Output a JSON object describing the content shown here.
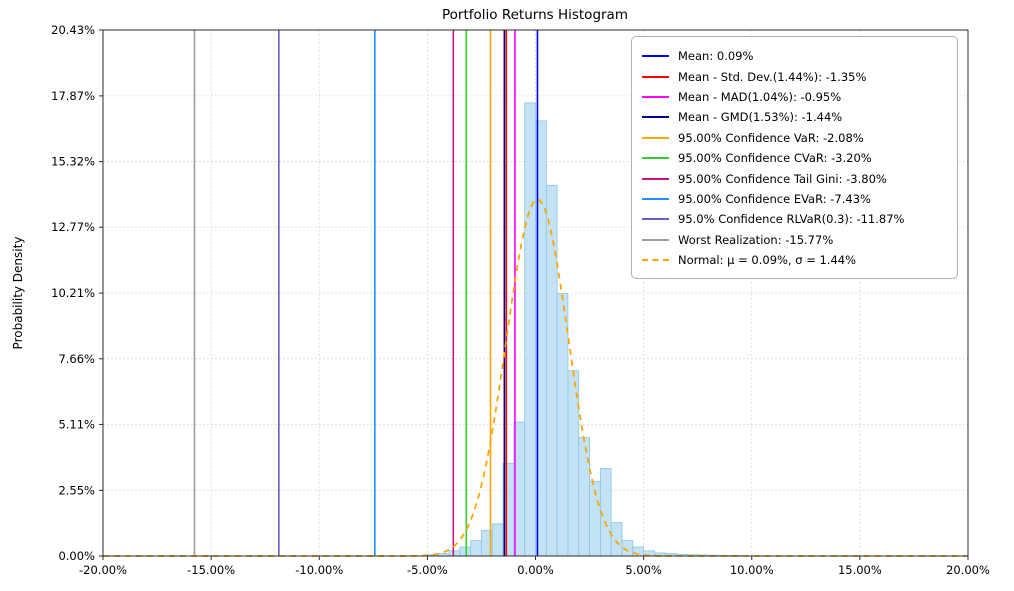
{
  "chart_data": {
    "type": "bar",
    "subtype": "histogram-with-risk-measures",
    "title": "Portfolio Returns Histogram",
    "xlabel": "",
    "ylabel": "Probability Density",
    "xlim": [
      -20,
      20
    ],
    "ylim": [
      0,
      20.43
    ],
    "grid": "dotted",
    "legend_position": "upper right",
    "x_ticks": [
      {
        "value": -20,
        "label": "-20.00%"
      },
      {
        "value": -15,
        "label": "-15.00%"
      },
      {
        "value": -10,
        "label": "-10.00%"
      },
      {
        "value": -5,
        "label": "-5.00%"
      },
      {
        "value": 0,
        "label": "0.00%"
      },
      {
        "value": 5,
        "label": "5.00%"
      },
      {
        "value": 10,
        "label": "10.00%"
      },
      {
        "value": 15,
        "label": "15.00%"
      },
      {
        "value": 20,
        "label": "20.00%"
      }
    ],
    "y_ticks": [
      {
        "value": 0,
        "label": "0.00%"
      },
      {
        "value": 2.55,
        "label": "2.55%"
      },
      {
        "value": 5.11,
        "label": "5.11%"
      },
      {
        "value": 7.66,
        "label": "7.66%"
      },
      {
        "value": 10.21,
        "label": "10.21%"
      },
      {
        "value": 12.77,
        "label": "12.77%"
      },
      {
        "value": 15.32,
        "label": "15.32%"
      },
      {
        "value": 17.87,
        "label": "17.87%"
      },
      {
        "value": 20.43,
        "label": "20.43%"
      }
    ],
    "histogram": {
      "color": "#b9ddf2",
      "edge_color": "#8cc6e8",
      "bin_width": 0.5,
      "bin_centers": [
        -4.75,
        -4.25,
        -3.75,
        -3.25,
        -2.75,
        -2.25,
        -1.75,
        -1.25,
        -0.75,
        -0.25,
        0.25,
        0.75,
        1.25,
        1.75,
        2.25,
        2.75,
        3.25,
        3.75,
        4.25,
        4.75,
        5.25,
        5.75,
        6.25,
        6.75,
        7.25,
        7.75,
        8.25,
        8.75,
        9.25
      ],
      "densities": [
        0.05,
        0.1,
        0.2,
        0.35,
        0.6,
        1.0,
        1.25,
        3.6,
        5.2,
        17.6,
        16.9,
        14.4,
        10.2,
        7.2,
        4.6,
        2.9,
        3.4,
        1.3,
        0.6,
        0.35,
        0.2,
        0.12,
        0.1,
        0.07,
        0.05,
        0.04,
        0.03,
        0.02,
        0.02
      ]
    },
    "vlines": [
      {
        "name": "mean",
        "label": "Mean: 0.09%",
        "value": 0.09,
        "color": "#0000ff"
      },
      {
        "name": "mean-minus-std",
        "label": "Mean - Std. Dev.(1.44%): -1.35%",
        "value": -1.35,
        "color": "#ff0000"
      },
      {
        "name": "mean-minus-mad",
        "label": "Mean - MAD(1.04%): -0.95%",
        "value": -0.95,
        "color": "#ff00ff"
      },
      {
        "name": "mean-minus-gmd",
        "label": "Mean - GMD(1.53%): -1.44%",
        "value": -1.44,
        "color": "#00008b"
      },
      {
        "name": "var",
        "label": "95.00% Confidence VaR: -2.08%",
        "value": -2.08,
        "color": "#ffa500"
      },
      {
        "name": "cvar",
        "label": "95.00% Confidence CVaR: -3.20%",
        "value": -3.2,
        "color": "#32cd32"
      },
      {
        "name": "tail-gini",
        "label": "95.00% Confidence Tail Gini: -3.80%",
        "value": -3.8,
        "color": "#c71585"
      },
      {
        "name": "evar",
        "label": "95.00% Confidence EVaR: -7.43%",
        "value": -7.43,
        "color": "#1e90ff"
      },
      {
        "name": "rlvar",
        "label": "95.0% Confidence RLVaR(0.3): -11.87%",
        "value": -11.87,
        "color": "#6a5acd"
      },
      {
        "name": "worst",
        "label": "Worst Realization: -15.77%",
        "value": -15.77,
        "color": "#9e9e9e"
      }
    ],
    "normal": {
      "label": "Normal: μ = 0.09%, σ = 1.44%",
      "mu": 0.09,
      "sigma": 1.44,
      "color": "#ffa500",
      "style": "dashed"
    }
  }
}
